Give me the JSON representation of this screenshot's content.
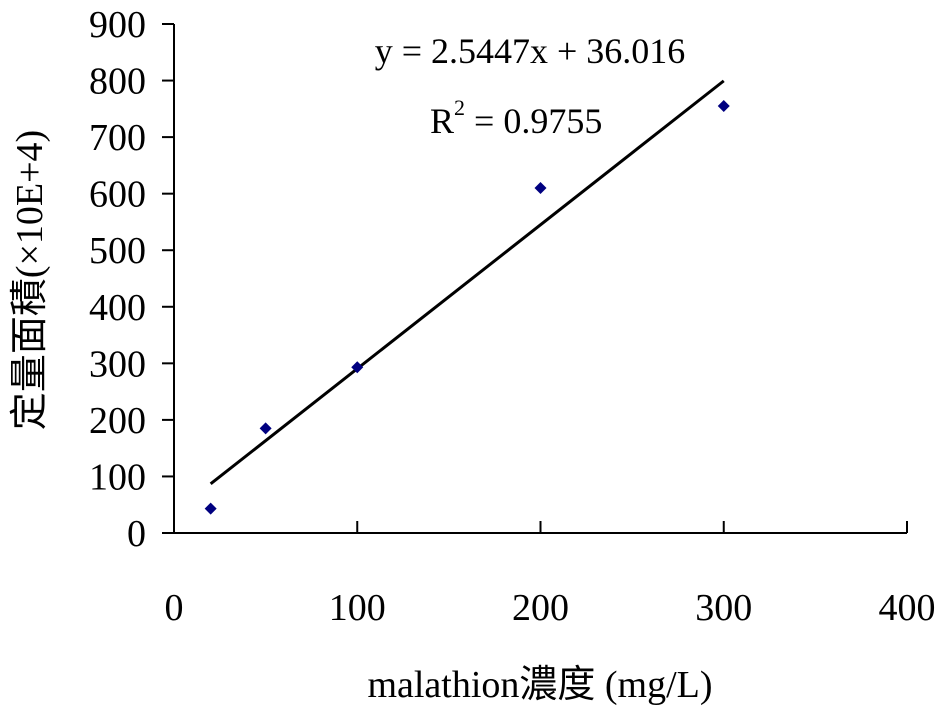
{
  "chart_data": {
    "type": "scatter",
    "title": "",
    "xlabel": "malathion濃度 (mg/L)",
    "ylabel": "定量面積(×10E+4)",
    "xlim": [
      0,
      400
    ],
    "ylim": [
      0,
      900
    ],
    "x_ticks": [
      "0",
      "100",
      "200",
      "300",
      "400"
    ],
    "y_ticks": [
      "0",
      "100",
      "200",
      "300",
      "400",
      "500",
      "600",
      "700",
      "800",
      "900"
    ],
    "grid": false,
    "legend": "none",
    "series": [
      {
        "color": "#000080",
        "marker": "diamond",
        "points": [
          {
            "x": 20,
            "y": 43
          },
          {
            "x": 50,
            "y": 185
          },
          {
            "x": 100,
            "y": 293
          },
          {
            "x": 200,
            "y": 610
          },
          {
            "x": 300,
            "y": 755
          }
        ]
      }
    ],
    "trendline": {
      "type": "linear",
      "slope": 2.5447,
      "intercept": 36.016,
      "x_range": [
        20,
        300
      ],
      "color": "#000000",
      "equation_label": "y = 2.5447x + 36.016",
      "r2_prefix": "R",
      "r2_superscript": "2",
      "r2_value": " = 0.9755"
    }
  }
}
